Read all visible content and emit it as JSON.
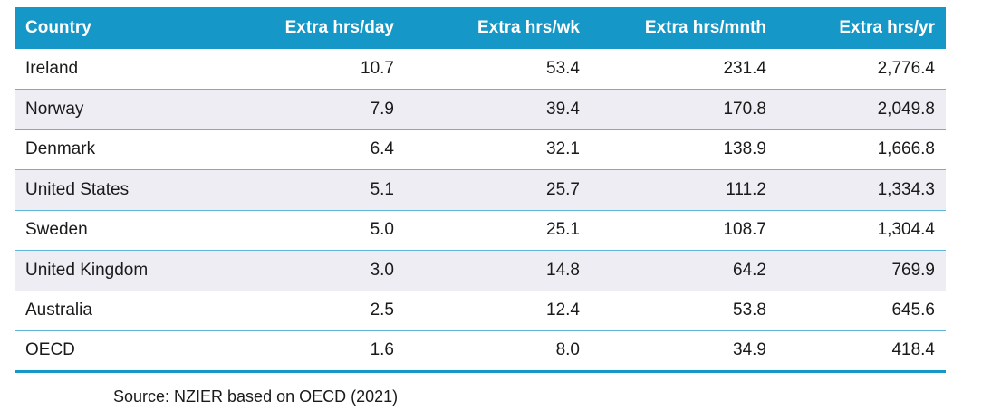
{
  "table": {
    "headers": [
      "Country",
      "Extra hrs/day",
      "Extra hrs/wk",
      "Extra hrs/mnth",
      "Extra hrs/yr"
    ],
    "rows": [
      [
        "Ireland",
        "10.7",
        "53.4",
        "231.4",
        "2,776.4"
      ],
      [
        "Norway",
        "7.9",
        "39.4",
        "170.8",
        "2,049.8"
      ],
      [
        "Denmark",
        "6.4",
        "32.1",
        "138.9",
        "1,666.8"
      ],
      [
        "United States",
        "5.1",
        "25.7",
        "111.2",
        "1,334.3"
      ],
      [
        "Sweden",
        "5.0",
        "25.1",
        "108.7",
        "1,304.4"
      ],
      [
        "United Kingdom",
        "3.0",
        "14.8",
        "64.2",
        "769.9"
      ],
      [
        "Australia",
        "2.5",
        "12.4",
        "53.8",
        "645.6"
      ],
      [
        "OECD",
        "1.6",
        "8.0",
        "34.9",
        "418.4"
      ]
    ]
  },
  "source": "Source: NZIER based on OECD (2021)",
  "colors": {
    "header_bg": "#1598c8",
    "header_text": "#ffffff",
    "alt_row_bg": "#eeedf3",
    "row_divider": "#5fb6d9"
  }
}
